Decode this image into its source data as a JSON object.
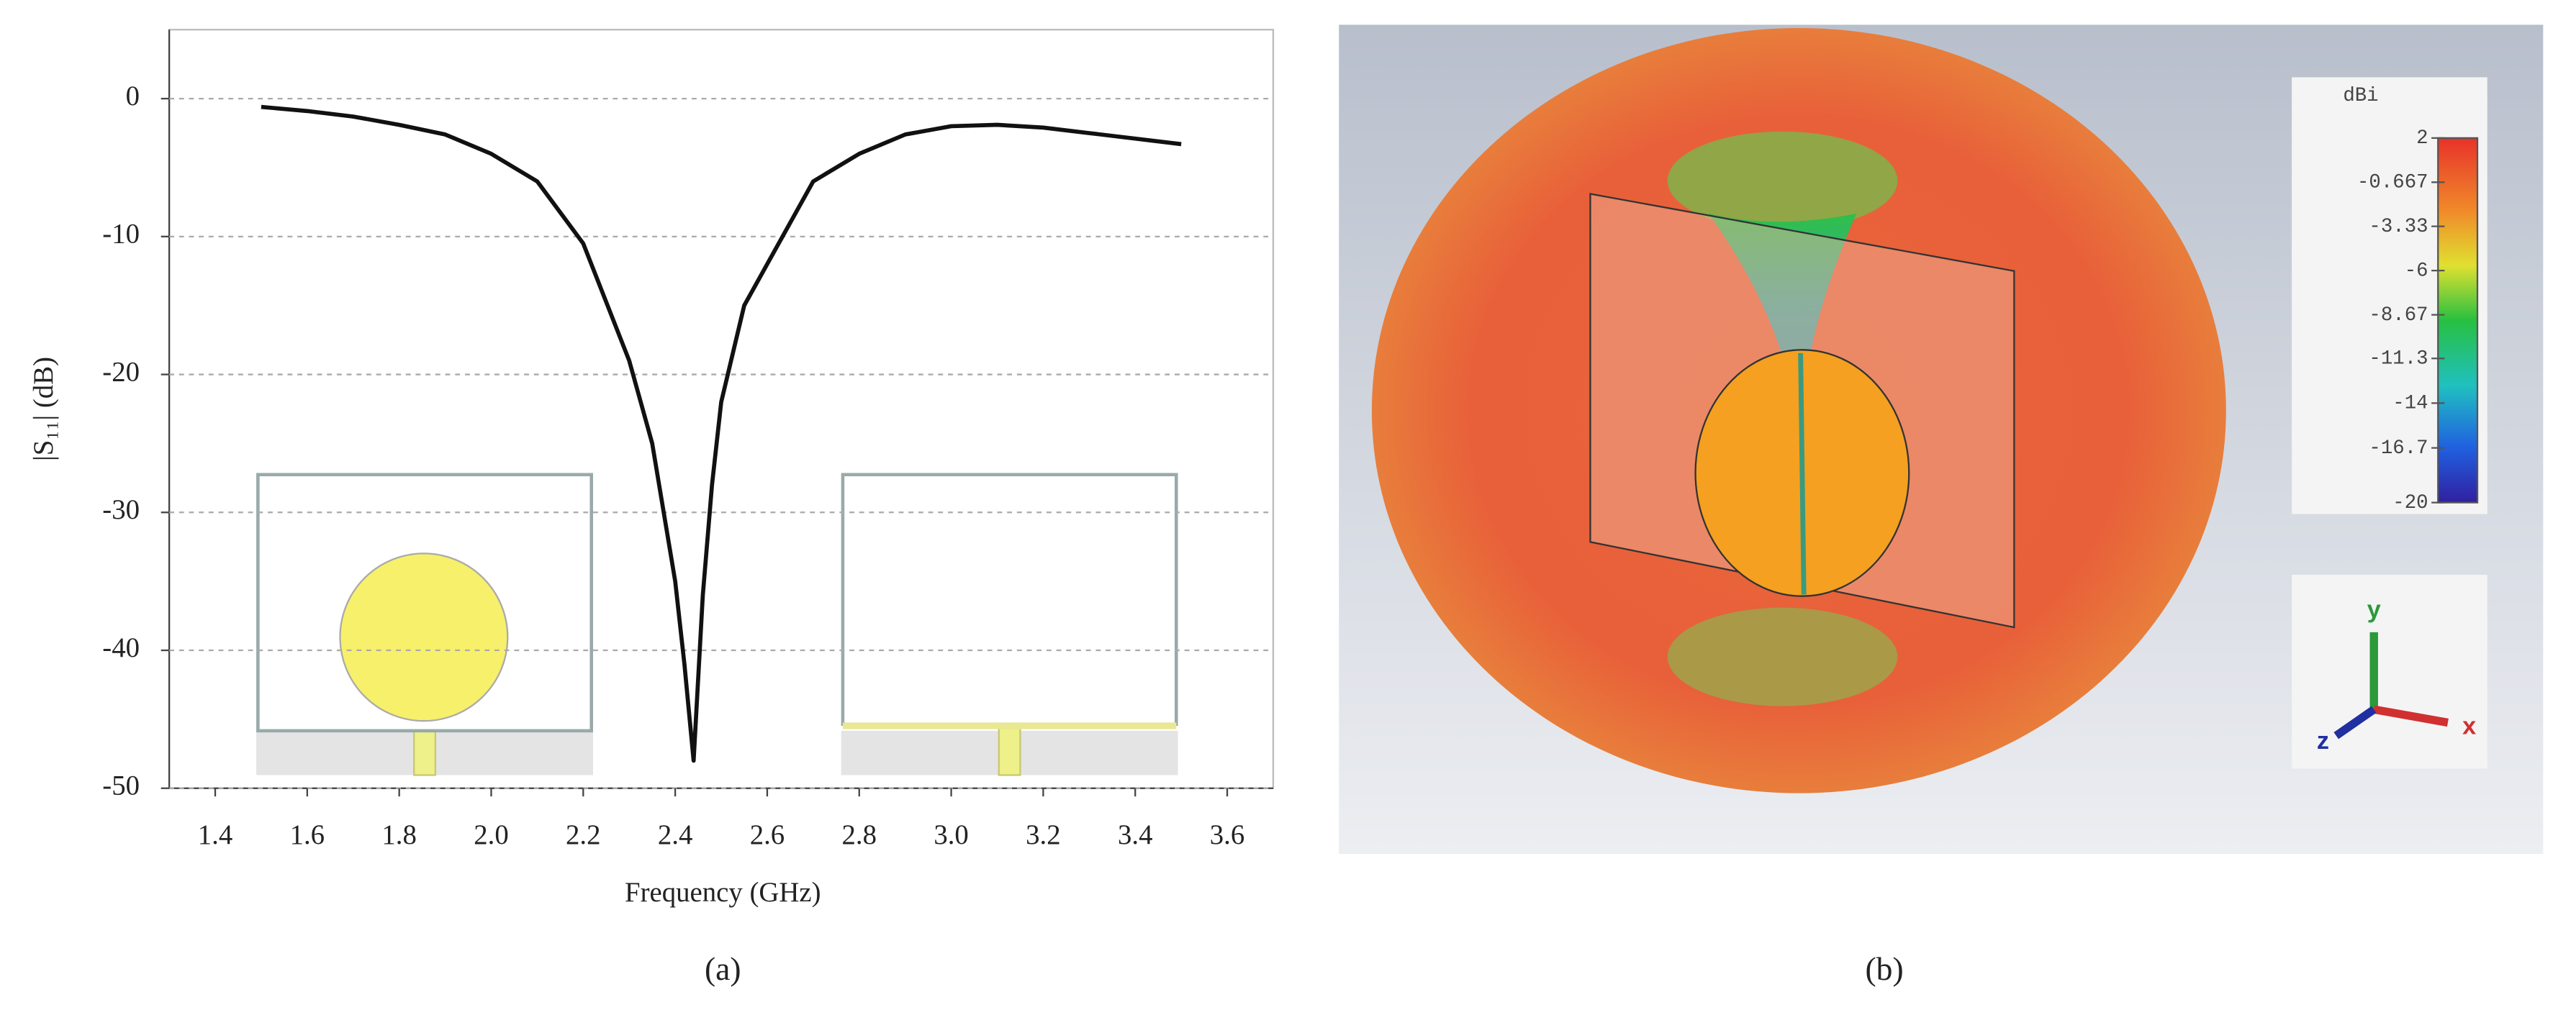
{
  "chart_data": [
    {
      "type": "line",
      "caption": "(a)",
      "xlabel": "Frequency (GHz)",
      "ylabel": "|S₁₁| (dB)",
      "color": "#111111",
      "x": [
        1.5,
        1.6,
        1.7,
        1.8,
        1.9,
        2.0,
        2.1,
        2.2,
        2.3,
        2.35,
        2.4,
        2.42,
        2.44,
        2.46,
        2.48,
        2.5,
        2.55,
        2.6,
        2.7,
        2.8,
        2.9,
        3.0,
        3.1,
        3.2,
        3.3,
        3.4,
        3.5
      ],
      "values": [
        -0.6,
        -0.9,
        -1.3,
        -1.9,
        -2.6,
        -4,
        -6,
        -10.5,
        -19,
        -25,
        -35,
        -41,
        -48,
        -36,
        -28,
        -22,
        -15,
        -12,
        -6,
        -4,
        -2.6,
        -2,
        -1.9,
        -2.1,
        -2.5,
        -2.9,
        -3.3
      ],
      "xlim": [
        1.3,
        3.7
      ],
      "ylim": [
        -50,
        5
      ],
      "xticks": [
        1.4,
        1.6,
        1.8,
        {
          "value": 2,
          "label": "2.0"
        },
        2.2,
        2.4,
        2.6,
        2.8,
        {
          "value": 3,
          "label": "3.0"
        },
        3.2,
        3.4,
        3.6
      ],
      "yticks": [
        0,
        -10,
        -20,
        -30,
        -40,
        -50
      ],
      "grid": true
    },
    {
      "type": "colorbar",
      "caption": "(b)",
      "title": "dBi",
      "clim": [
        -20,
        2
      ],
      "ticks": [
        2,
        -0.667,
        -3.33,
        -6,
        -8.67,
        -11.3,
        -14,
        -16.7,
        -20
      ],
      "axis_labels": [
        "y",
        "z",
        "x"
      ]
    }
  ]
}
